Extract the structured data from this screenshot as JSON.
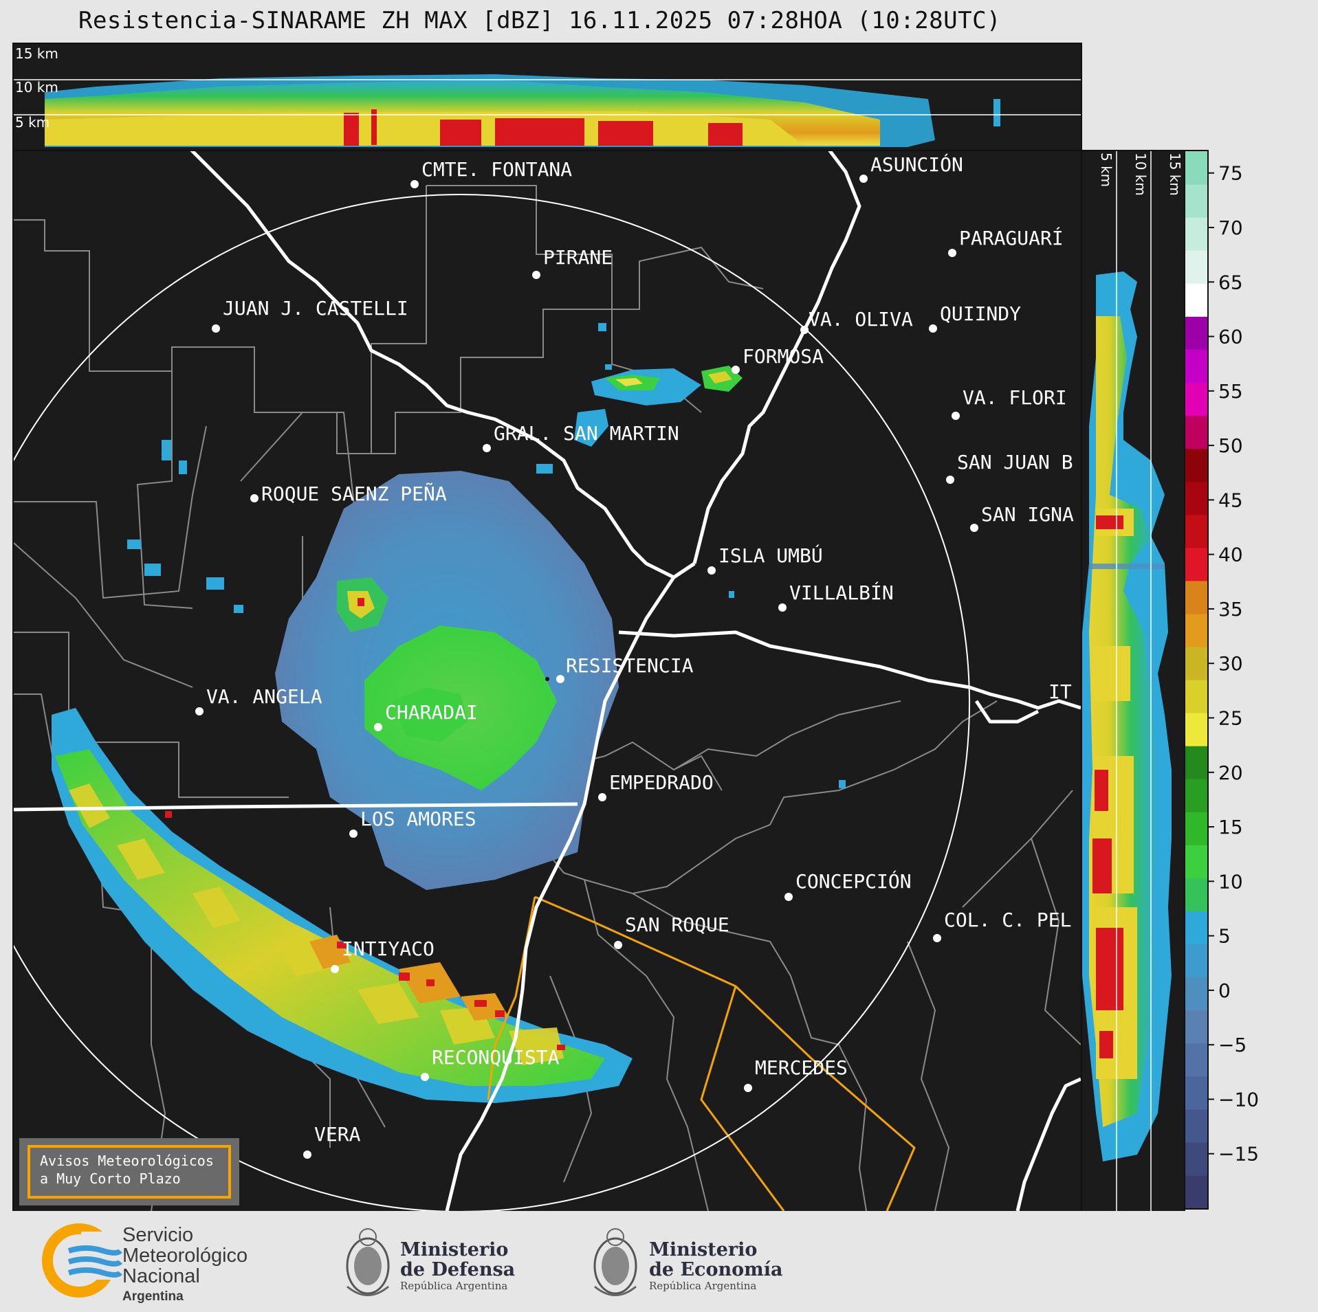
{
  "title": "Resistencia-SINARAME ZH MAX [dBZ] 16.11.2025 07:28HOA (10:28UTC)",
  "top_panel": {
    "km_labels": [
      "15 km",
      "10 km",
      "5 km"
    ]
  },
  "side_panel": {
    "km_labels": [
      "5 km",
      "10 km",
      "15 km"
    ]
  },
  "cities": [
    {
      "name": "CMTE. FONTANA"
    },
    {
      "name": "ASUNCIÓN"
    },
    {
      "name": "PIRANE"
    },
    {
      "name": "PARAGUARÍ"
    },
    {
      "name": "JUAN J. CASTELLI"
    },
    {
      "name": "VA. OLIVA"
    },
    {
      "name": "QUIINDY"
    },
    {
      "name": "FORMOSA"
    },
    {
      "name": "VA. FLORI"
    },
    {
      "name": "GRAL. SAN MARTIN"
    },
    {
      "name": "SAN JUAN B"
    },
    {
      "name": "ROQUE SAENZ PEÑA"
    },
    {
      "name": "SAN IGNA"
    },
    {
      "name": "ISLA UMBÚ"
    },
    {
      "name": "VILLALBÍN"
    },
    {
      "name": "RESISTENCIA"
    },
    {
      "name": "VA. ANGELA"
    },
    {
      "name": "CHARADAI"
    },
    {
      "name": "IT"
    },
    {
      "name": "EMPEDRADO"
    },
    {
      "name": "LOS AMORES"
    },
    {
      "name": "CONCEPCIÓN"
    },
    {
      "name": "SAN ROQUE"
    },
    {
      "name": "COL. C. PEL"
    },
    {
      "name": "INTIYACO"
    },
    {
      "name": "RECONQUISTA"
    },
    {
      "name": "MERCEDES"
    },
    {
      "name": "VERA"
    }
  ],
  "avisos": {
    "line1": "Avisos Meteorológicos",
    "line2": "a Muy Corto Plazo"
  },
  "colorbar": {
    "unit": "dBZ",
    "ticks": [
      "75",
      "70",
      "65",
      "60",
      "55",
      "50",
      "45",
      "40",
      "35",
      "30",
      "25",
      "20",
      "15",
      "10",
      "5",
      "0",
      "−5",
      "−10",
      "−15"
    ],
    "colors": [
      "#3a3d6b",
      "#3f4a7c",
      "#45588d",
      "#4b669c",
      "#5373a8",
      "#5b81b3",
      "#4f8fc0",
      "#3d9ccd",
      "#2ea9da",
      "#35c25a",
      "#3cd040",
      "#31b82a",
      "#2a9e22",
      "#258a1d",
      "#ede93a",
      "#d9d02c",
      "#cab624",
      "#e39b1d",
      "#d8841b",
      "#e01528",
      "#c50d18",
      "#a80510",
      "#8c0309",
      "#c0005f",
      "#e100b4",
      "#c400c6",
      "#9d00a9",
      "#ffffff",
      "#dff3ec",
      "#c5ecdd",
      "#a6e3cc",
      "#89dbbc"
    ]
  },
  "footer": {
    "smn": {
      "line1": "Servicio",
      "line2": "Meteorológico",
      "line3": "Nacional",
      "line4": "Argentina"
    },
    "defensa": {
      "line1": "Ministerio",
      "line2": "de Defensa",
      "line3": "República Argentina"
    },
    "economia": {
      "line1": "Ministerio",
      "line2": "de Economía",
      "line3": "República Argentina"
    }
  }
}
